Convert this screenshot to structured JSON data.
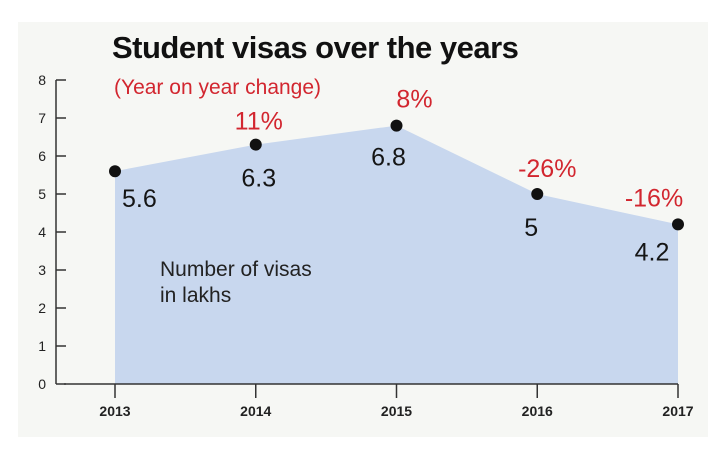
{
  "colors": {
    "area_fill": "#c8d7ee",
    "point": "#111111",
    "change_label": "#d2262f",
    "axis": "#333333",
    "frame_bg": "#f6f7f4"
  },
  "chart_data": {
    "type": "area",
    "title": "Student visas over the years",
    "subtitle": "(Year on year change)",
    "annotation": "Number of visas\nin lakhs",
    "x": [
      "2013",
      "2014",
      "2015",
      "2016",
      "2017"
    ],
    "series": [
      {
        "values": [
          5.6,
          6.3,
          6.8,
          5,
          4.2
        ],
        "value_labels": [
          "5.6",
          "6.3",
          "6.8",
          "5",
          "4.2"
        ],
        "change_labels": [
          "",
          "11%",
          "8%",
          "-26%",
          "-16%"
        ]
      }
    ],
    "y_ticks": [
      "0",
      "1",
      "2",
      "3",
      "4",
      "5",
      "6",
      "7",
      "8"
    ],
    "ylim": [
      0,
      8
    ],
    "grid": false,
    "legend": "none"
  }
}
